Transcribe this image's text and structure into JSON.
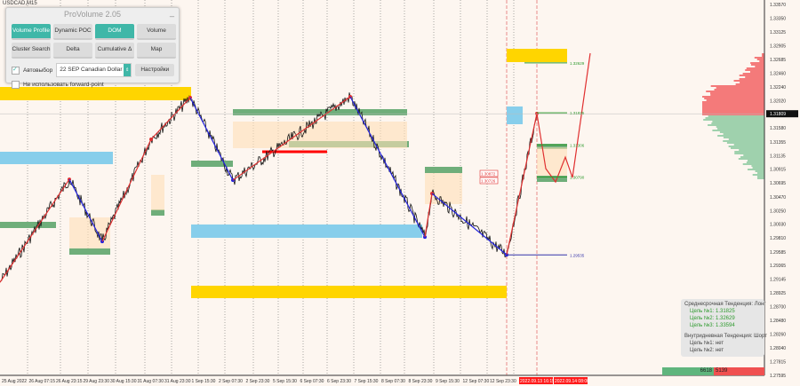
{
  "symbol": "USDCAD,M15",
  "panel": {
    "title": "ProVolume 2.05",
    "minimize": "_",
    "buttons": [
      {
        "label": "Volume Profile",
        "active": true
      },
      {
        "label": "Dynamic POC",
        "active": false
      },
      {
        "label": "DOM",
        "active": true
      },
      {
        "label": "Volume",
        "active": false
      },
      {
        "label": "Cluster Search",
        "active": false
      },
      {
        "label": "Delta",
        "active": false
      },
      {
        "label": "Cumulative Δ",
        "active": false
      },
      {
        "label": "Map",
        "active": false
      }
    ],
    "autoselect_label": "Автовыбор",
    "autoselect_checked": true,
    "instrument": "22 SEP Canadian Dollar",
    "settings_label": "Настройки",
    "forward_label": "Не использовать forward-point",
    "forward_checked": false
  },
  "info": {
    "mid_title": "Среднесрочная Тенденция: Лонг",
    "mid_targets": [
      "Цель №1: 1.31825",
      "Цель №2: 1.32629",
      "Цель №3: 1.33594"
    ],
    "intra_title": "Внутридневная Тенденция: Шорт",
    "intra_targets": [
      "Цель №1: нет",
      "Цель №2: нет"
    ]
  },
  "volume_bar": {
    "buy": "6618",
    "sell": "5139",
    "buy_color": "#5fb57d",
    "sell_color": "#f05050"
  },
  "chart_data": {
    "type": "line",
    "price_axis": [
      "1.33570",
      "1.33350",
      "1.33125",
      "1.32905",
      "1.32685",
      "1.32460",
      "1.32240",
      "1.32020",
      "1.31580",
      "1.31355",
      "1.31135",
      "1.30915",
      "1.30695",
      "1.30470",
      "1.30250",
      "1.30030",
      "1.29810",
      "1.29585",
      "1.29365",
      "1.29145",
      "1.28925",
      "1.28700",
      "1.28480",
      "1.28260",
      "1.28040",
      "1.27815",
      "1.27595"
    ],
    "ylim": [
      1.27595,
      1.3357
    ],
    "current_price": "1.31809",
    "time_axis": [
      "25 Aug 2022",
      "26 Aug 07:15",
      "26 Aug 23:15",
      "29 Aug 23:30",
      "30 Aug 15:30",
      "31 Aug 07:30",
      "31 Aug 23:30",
      "1 Sep 15:30",
      "2 Sep 07:30",
      "2 Sep 23:30",
      "5 Sep 15:30",
      "6 Sep 07:30",
      "6 Sep 23:30",
      "7 Sep 15:30",
      "8 Sep 07:30",
      "8 Sep 23:30",
      "9 Sep 15:30",
      "12 Sep 07:30",
      "12 Sep 23:30"
    ],
    "time_markers": [
      "2022.09.13 16:15",
      "2022.09.14 08:00"
    ],
    "zigzag": [
      1.29094,
      1.30753,
      1.29752,
      1.31397,
      1.32069,
      1.30739,
      1.32083,
      1.29823,
      1.30524,
      1.29537,
      1.31811
    ],
    "projection": [
      1.31811,
      1.30925,
      1.3071,
      1.3111,
      1.30781,
      1.32784
    ],
    "levels": [
      {
        "label": "1.32629",
        "color": "#2e9a2e"
      },
      {
        "label": "1.31825",
        "color": "#2e9a2e"
      },
      {
        "label": "1.31306",
        "color": "#2e9a2e"
      },
      {
        "label": "1.30790",
        "color": "#2e9a2e"
      },
      {
        "label": "1.29535",
        "color": "#3333aa"
      }
    ],
    "price_tags": [
      "1.30872",
      "1.30726"
    ],
    "colors": {
      "up": "#e03030",
      "down": "#2222dd",
      "gold": "#ffd500",
      "blue": "#87ceeb",
      "green": "#6fae7a"
    }
  }
}
